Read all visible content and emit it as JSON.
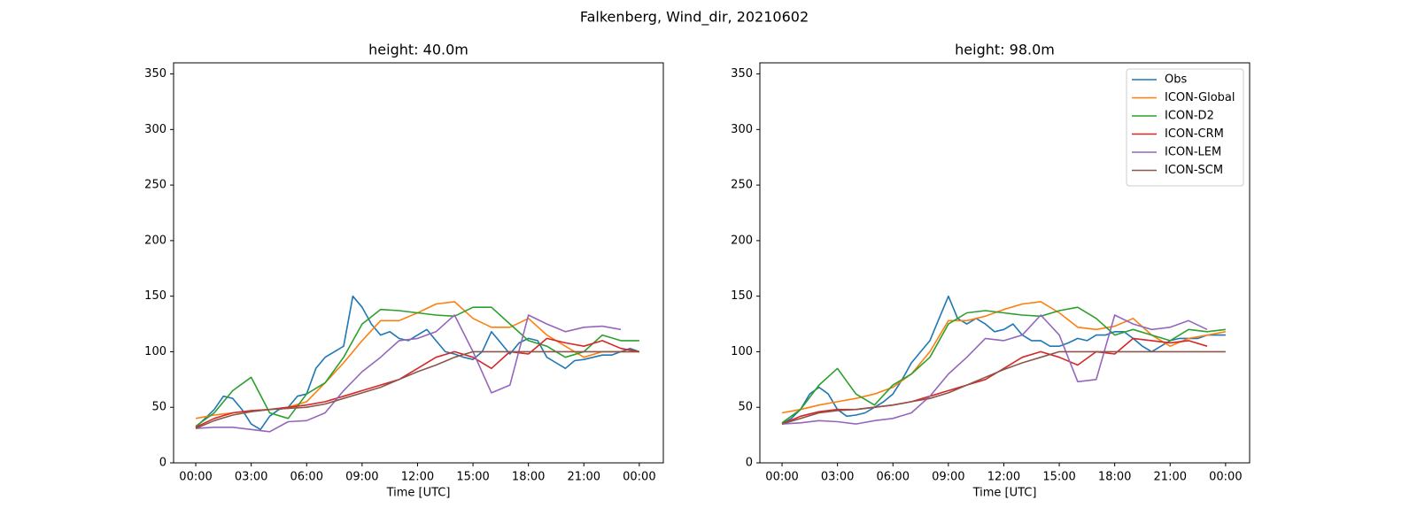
{
  "suptitle": "Falkenberg, Wind_dir, 20210602",
  "chart_data": [
    {
      "type": "line",
      "title": "height: 40.0m",
      "xlabel": "Time [UTC]",
      "xlim": [
        -1.2,
        25.3
      ],
      "ylim": [
        0,
        360
      ],
      "xticks": [
        {
          "value": 0,
          "label": "00:00"
        },
        {
          "value": 3,
          "label": "03:00"
        },
        {
          "value": 6,
          "label": "06:00"
        },
        {
          "value": 9,
          "label": "09:00"
        },
        {
          "value": 12,
          "label": "12:00"
        },
        {
          "value": 15,
          "label": "15:00"
        },
        {
          "value": 18,
          "label": "18:00"
        },
        {
          "value": 21,
          "label": "21:00"
        },
        {
          "value": 24,
          "label": "00:00"
        }
      ],
      "yticks": [
        0,
        50,
        100,
        150,
        200,
        250,
        300,
        350
      ],
      "series": [
        {
          "name": "Obs",
          "color": "#1f77b4",
          "x": [
            0,
            0.5,
            1,
            1.5,
            2,
            2.5,
            3,
            3.5,
            4,
            4.5,
            5,
            5.5,
            6,
            6.5,
            7,
            7.5,
            8,
            8.5,
            9,
            9.5,
            10,
            10.5,
            11,
            11.5,
            12,
            12.5,
            13,
            13.5,
            14,
            14.5,
            15,
            15.5,
            16,
            16.5,
            17,
            17.5,
            18,
            18.5,
            19,
            19.5,
            20,
            20.5,
            21,
            21.5,
            22,
            22.5,
            23,
            23.5,
            24
          ],
          "values": [
            32,
            40,
            48,
            60,
            58,
            48,
            35,
            30,
            42,
            48,
            50,
            60,
            62,
            85,
            95,
            100,
            105,
            150,
            140,
            125,
            115,
            118,
            112,
            110,
            115,
            120,
            110,
            100,
            98,
            95,
            93,
            100,
            118,
            108,
            98,
            108,
            112,
            110,
            95,
            90,
            85,
            92,
            93,
            95,
            97,
            97,
            100,
            103,
            100
          ]
        },
        {
          "name": "ICON-Global",
          "color": "#ff7f0e",
          "x": [
            0,
            1,
            2,
            3,
            4,
            5,
            6,
            7,
            8,
            9,
            10,
            11,
            12,
            13,
            14,
            15,
            16,
            17,
            18,
            19,
            20,
            21,
            22,
            23,
            24
          ],
          "values": [
            40,
            43,
            45,
            47,
            48,
            50,
            55,
            72,
            90,
            110,
            128,
            128,
            135,
            143,
            145,
            130,
            122,
            122,
            130,
            115,
            105,
            95,
            100,
            100,
            100
          ]
        },
        {
          "name": "ICON-D2",
          "color": "#2ca02c",
          "x": [
            0,
            1,
            2,
            3,
            4,
            5,
            6,
            7,
            8,
            9,
            10,
            11,
            12,
            13,
            14,
            15,
            16,
            17,
            18,
            19,
            20,
            21,
            22,
            23,
            24
          ],
          "values": [
            33,
            45,
            65,
            77,
            45,
            40,
            62,
            72,
            95,
            125,
            138,
            137,
            135,
            133,
            132,
            140,
            140,
            125,
            110,
            105,
            95,
            100,
            115,
            110,
            110
          ]
        },
        {
          "name": "ICON-CRM",
          "color": "#d62728",
          "x": [
            0,
            1,
            2,
            3,
            4,
            5,
            6,
            7,
            8,
            9,
            10,
            11,
            12,
            13,
            14,
            15,
            16,
            17,
            18,
            19,
            20,
            21,
            22,
            23,
            24
          ],
          "values": [
            32,
            40,
            45,
            47,
            48,
            50,
            52,
            55,
            60,
            65,
            70,
            75,
            85,
            95,
            100,
            95,
            85,
            100,
            98,
            112,
            108,
            105,
            110,
            103,
            100
          ]
        },
        {
          "name": "ICON-LEM",
          "color": "#9467bd",
          "x": [
            0,
            1,
            2,
            3,
            4,
            5,
            6,
            7,
            8,
            9,
            10,
            11,
            12,
            13,
            14,
            15,
            16,
            17,
            18,
            19,
            20,
            21,
            22,
            23
          ],
          "values": [
            31,
            32,
            32,
            30,
            28,
            37,
            38,
            45,
            65,
            82,
            95,
            110,
            112,
            118,
            133,
            100,
            63,
            70,
            133,
            125,
            118,
            122,
            123,
            120
          ]
        },
        {
          "name": "ICON-SCM",
          "color": "#8c564b",
          "x": [
            0,
            1,
            2,
            3,
            4,
            5,
            6,
            7,
            8,
            9,
            10,
            11,
            12,
            13,
            14,
            15,
            16,
            17,
            18,
            19,
            20,
            21,
            22,
            23,
            24
          ],
          "values": [
            31,
            38,
            43,
            46,
            48,
            49,
            50,
            53,
            58,
            63,
            68,
            75,
            82,
            88,
            95,
            100,
            100,
            100,
            100,
            100,
            100,
            100,
            100,
            100,
            100
          ]
        }
      ]
    },
    {
      "type": "line",
      "title": "height: 98.0m",
      "xlabel": "Time [UTC]",
      "legend": "upper right",
      "xlim": [
        -1.2,
        25.3
      ],
      "ylim": [
        0,
        360
      ],
      "xticks": [
        {
          "value": 0,
          "label": "00:00"
        },
        {
          "value": 3,
          "label": "03:00"
        },
        {
          "value": 6,
          "label": "06:00"
        },
        {
          "value": 9,
          "label": "09:00"
        },
        {
          "value": 12,
          "label": "12:00"
        },
        {
          "value": 15,
          "label": "15:00"
        },
        {
          "value": 18,
          "label": "18:00"
        },
        {
          "value": 21,
          "label": "21:00"
        },
        {
          "value": 24,
          "label": "00:00"
        }
      ],
      "yticks": [
        0,
        50,
        100,
        150,
        200,
        250,
        300,
        350
      ],
      "series": [
        {
          "name": "Obs",
          "color": "#1f77b4",
          "x": [
            0,
            0.5,
            1,
            1.5,
            2,
            2.5,
            3,
            3.5,
            4,
            4.5,
            5,
            5.5,
            6,
            6.5,
            7,
            7.5,
            8,
            8.5,
            9,
            9.5,
            10,
            10.5,
            11,
            11.5,
            12,
            12.5,
            13,
            13.5,
            14,
            14.5,
            15,
            15.5,
            16,
            16.5,
            17,
            17.5,
            18,
            18.5,
            19,
            19.5,
            20,
            20.5,
            21,
            21.5,
            22,
            22.5,
            23,
            23.5,
            24
          ],
          "values": [
            35,
            40,
            48,
            62,
            68,
            62,
            48,
            42,
            43,
            45,
            50,
            55,
            62,
            75,
            90,
            100,
            110,
            130,
            150,
            130,
            125,
            130,
            125,
            118,
            120,
            125,
            115,
            110,
            110,
            105,
            105,
            108,
            112,
            110,
            115,
            115,
            118,
            118,
            112,
            105,
            100,
            105,
            110,
            112,
            112,
            112,
            115,
            115,
            115
          ]
        },
        {
          "name": "ICON-Global",
          "color": "#ff7f0e",
          "x": [
            0,
            1,
            2,
            3,
            4,
            5,
            6,
            7,
            8,
            9,
            10,
            11,
            12,
            13,
            14,
            15,
            16,
            17,
            18,
            19,
            20,
            21,
            22,
            23,
            24
          ],
          "values": [
            45,
            48,
            52,
            55,
            58,
            62,
            68,
            80,
            100,
            128,
            128,
            132,
            138,
            143,
            145,
            135,
            122,
            120,
            123,
            130,
            115,
            105,
            112,
            115,
            118
          ]
        },
        {
          "name": "ICON-D2",
          "color": "#2ca02c",
          "x": [
            0,
            1,
            2,
            3,
            4,
            5,
            6,
            7,
            8,
            9,
            10,
            11,
            12,
            13,
            14,
            15,
            16,
            17,
            18,
            19,
            20,
            21,
            22,
            23,
            24
          ],
          "values": [
            36,
            48,
            70,
            85,
            62,
            52,
            70,
            80,
            95,
            125,
            135,
            137,
            135,
            133,
            132,
            137,
            140,
            130,
            115,
            120,
            115,
            110,
            120,
            118,
            120
          ]
        },
        {
          "name": "ICON-CRM",
          "color": "#d62728",
          "x": [
            0,
            1,
            2,
            3,
            4,
            5,
            6,
            7,
            8,
            9,
            10,
            11,
            12,
            13,
            14,
            15,
            16,
            17,
            18,
            19,
            20,
            21,
            22,
            23
          ],
          "values": [
            35,
            42,
            46,
            48,
            48,
            50,
            52,
            55,
            60,
            65,
            70,
            75,
            85,
            95,
            100,
            95,
            88,
            100,
            98,
            112,
            110,
            108,
            110,
            105
          ]
        },
        {
          "name": "ICON-LEM",
          "color": "#9467bd",
          "x": [
            0,
            1,
            2,
            3,
            4,
            5,
            6,
            7,
            8,
            9,
            10,
            11,
            12,
            13,
            14,
            15,
            16,
            17,
            18,
            19,
            20,
            21,
            22,
            23
          ],
          "values": [
            35,
            36,
            38,
            37,
            35,
            38,
            40,
            45,
            60,
            80,
            95,
            112,
            110,
            115,
            133,
            115,
            73,
            75,
            133,
            125,
            120,
            122,
            128,
            120
          ]
        },
        {
          "name": "ICON-SCM",
          "color": "#8c564b",
          "x": [
            0,
            1,
            2,
            3,
            4,
            5,
            6,
            7,
            8,
            9,
            10,
            11,
            12,
            13,
            14,
            15,
            16,
            17,
            18,
            19,
            20,
            21,
            22,
            23,
            24
          ],
          "values": [
            35,
            40,
            45,
            47,
            48,
            50,
            52,
            55,
            58,
            63,
            70,
            77,
            84,
            90,
            95,
            100,
            100,
            100,
            100,
            100,
            100,
            100,
            100,
            100,
            100
          ]
        }
      ]
    }
  ]
}
